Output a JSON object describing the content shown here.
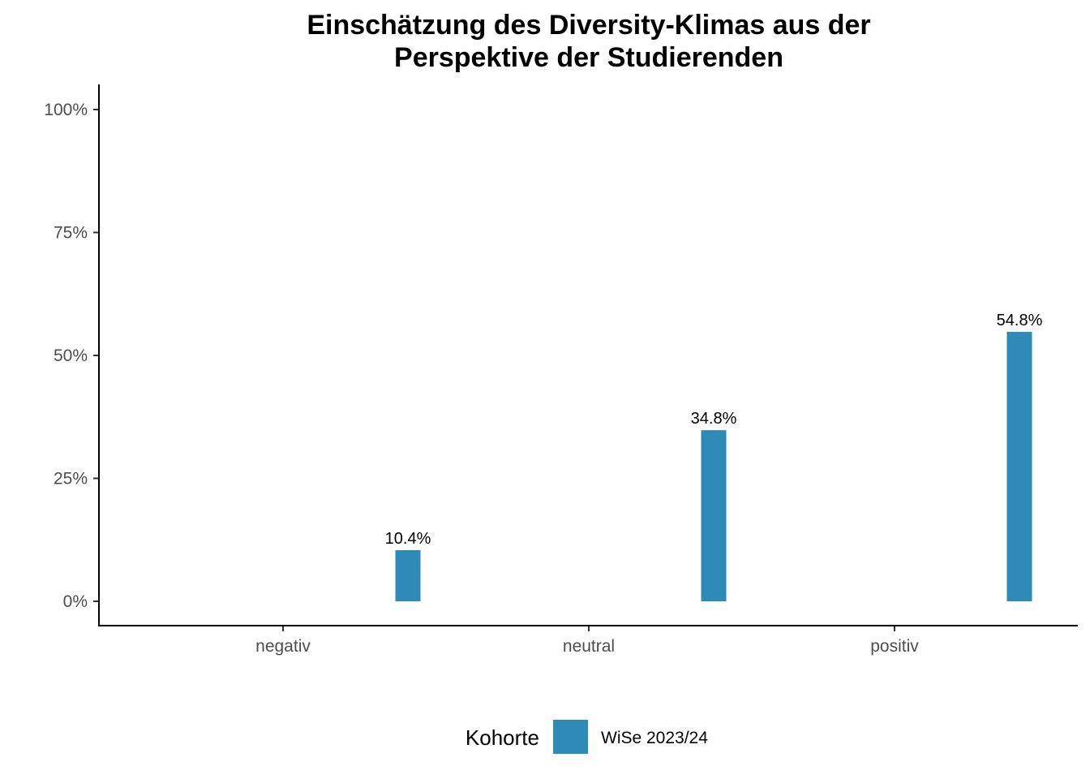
{
  "chart_data": {
    "type": "bar",
    "title": "Einschätzung des Diversity-Klimas aus der Perspektive der Studierenden",
    "title_lines": [
      "Einschätzung des Diversity-Klimas aus der",
      "Perspektive der Studierenden"
    ],
    "xlabel": "",
    "ylabel": "",
    "categories": [
      "negativ",
      "neutral",
      "positiv"
    ],
    "series": [
      {
        "name": "WiSe 2023/24",
        "color": "#2E8BB8",
        "values": [
          10.4,
          34.8,
          54.8
        ],
        "labels": [
          "10.4%",
          "34.8%",
          "54.8%"
        ]
      }
    ],
    "ylim": [
      0,
      100
    ],
    "yticks": [
      0,
      25,
      50,
      75,
      100
    ],
    "ytick_labels": [
      "0%",
      "25%",
      "50%",
      "75%",
      "100%"
    ],
    "grid": false,
    "legend": {
      "title": "Kohorte",
      "position": "bottom"
    }
  }
}
